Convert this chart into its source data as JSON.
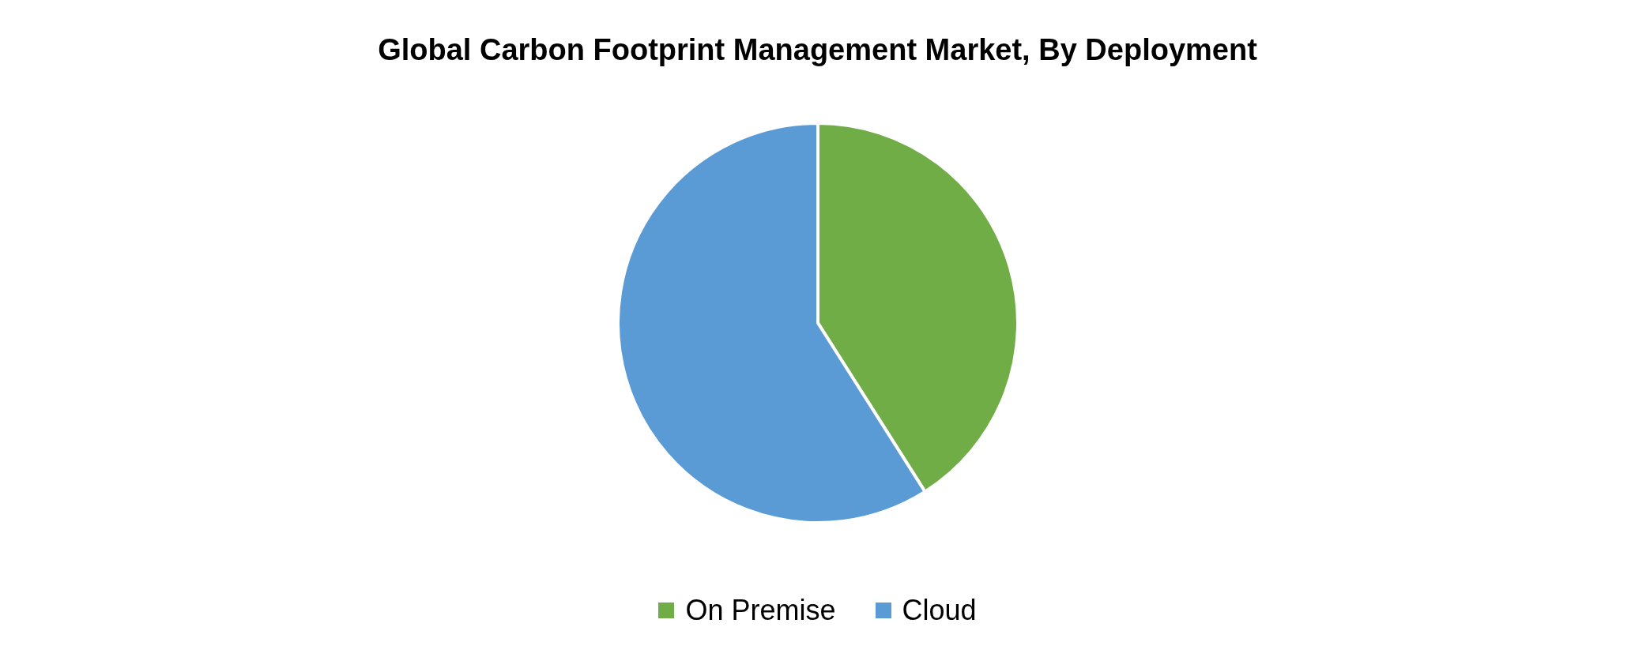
{
  "chart_data": {
    "type": "pie",
    "title": "Global Carbon Footprint Management Market, By Deployment",
    "categories": [
      "On Premise",
      "Cloud"
    ],
    "values": [
      41,
      59
    ],
    "colors": [
      "#70ad47",
      "#5b9bd5"
    ],
    "legend": "bottom"
  }
}
